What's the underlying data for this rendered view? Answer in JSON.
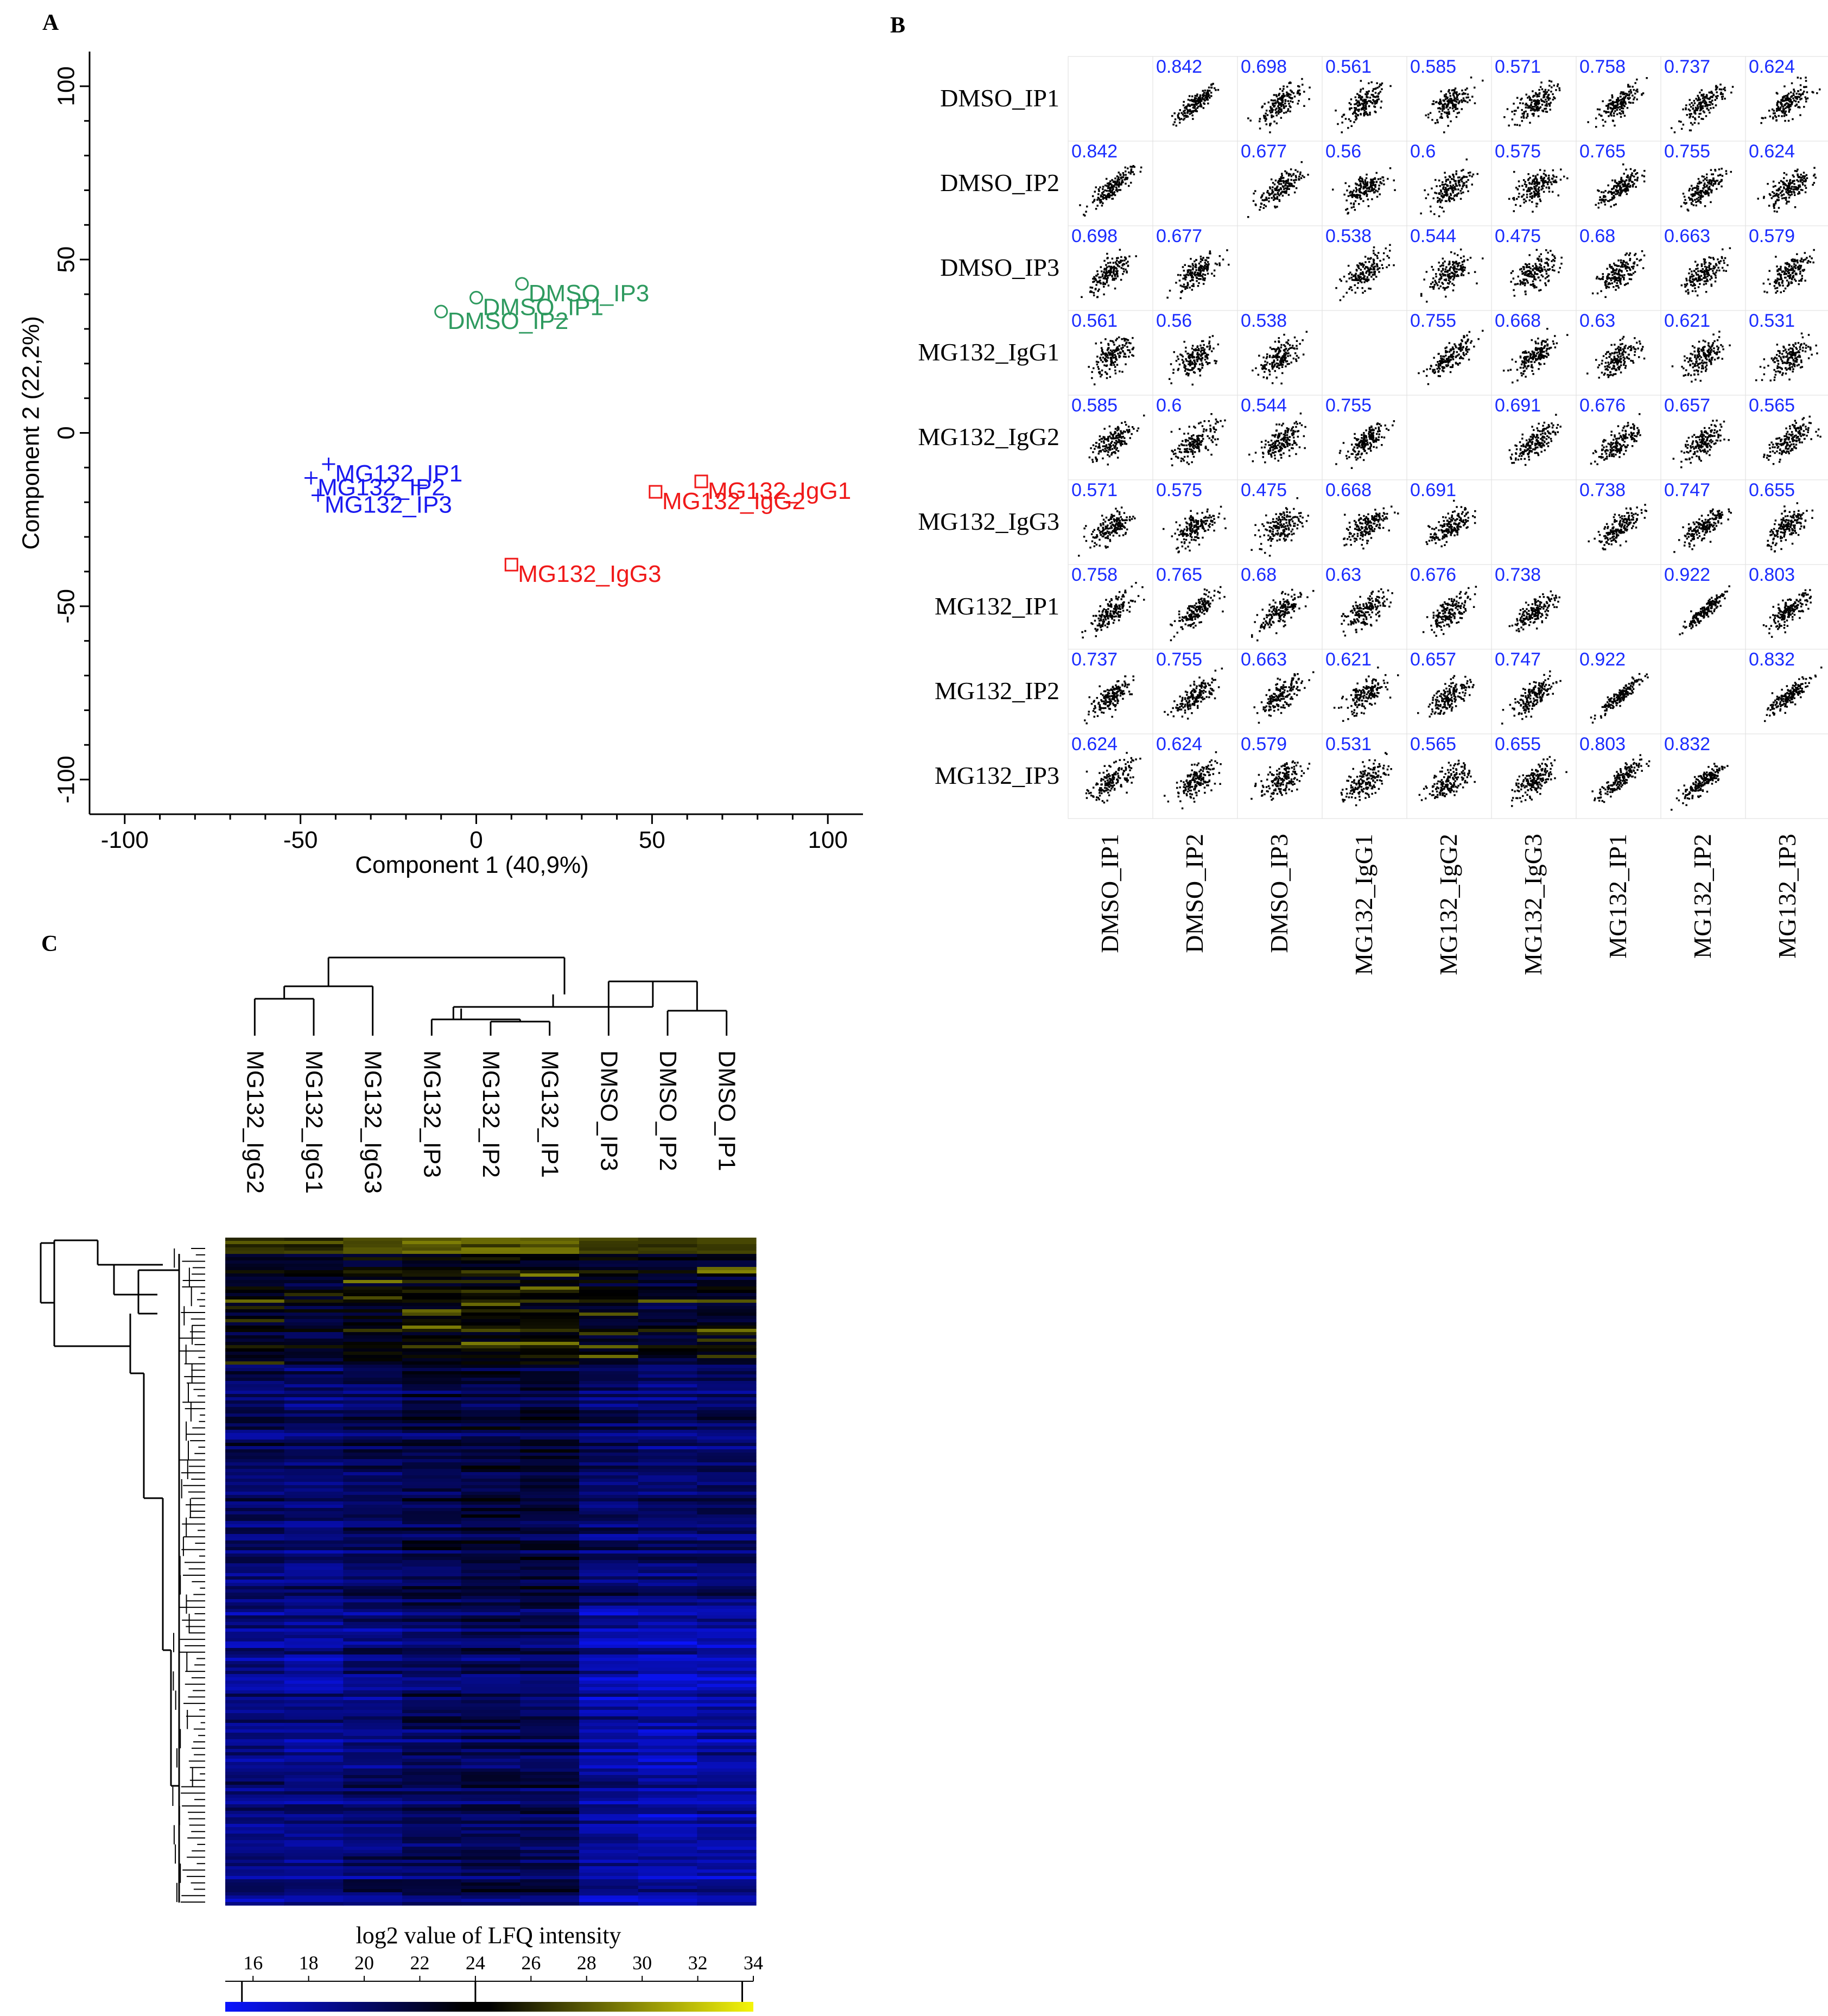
{
  "panel_labels": {
    "a": "A",
    "b": "B",
    "c": "C"
  },
  "colors": {
    "dmso": "#2e9a5f",
    "mg132_ip": "#1a1af0",
    "mg132_igg": "#f01a1a",
    "corr_text": "#1a2cff",
    "heat_low": "#0a14ff",
    "heat_mid": "#000000",
    "heat_high": "#f0f00a"
  },
  "chart_data": [
    {
      "type": "scatter",
      "panel": "A",
      "xlabel": "Component 1 (40,9%)",
      "ylabel": "Component 2 (22,2%)",
      "xlim": [
        -110,
        110
      ],
      "ylim": [
        -110,
        110
      ],
      "xticks": [
        "-100",
        "-50",
        "0",
        "50",
        "100"
      ],
      "yticks": [
        "100",
        "50",
        "0",
        "-50",
        "-100"
      ],
      "series": [
        {
          "name": "DMSO",
          "color_key": "dmso",
          "marker": "circle",
          "points": [
            {
              "label": "DMSO_IP3",
              "x": 13,
              "y": 43
            },
            {
              "label": "DMSO_IP1",
              "x": 0,
              "y": 39
            },
            {
              "label": "DMSO_IP2",
              "x": -10,
              "y": 35
            }
          ]
        },
        {
          "name": "MG132 IP",
          "color_key": "mg132_ip",
          "marker": "plus",
          "points": [
            {
              "label": "MG132_IP1",
              "x": -42,
              "y": -9
            },
            {
              "label": "MG132_IP2",
              "x": -47,
              "y": -13
            },
            {
              "label": "MG132_IP3",
              "x": -45,
              "y": -18
            }
          ]
        },
        {
          "name": "MG132 IgG",
          "color_key": "mg132_igg",
          "marker": "square",
          "points": [
            {
              "label": "MG132_IgG1",
              "x": 64,
              "y": -14
            },
            {
              "label": "MG132_IgG2",
              "x": 51,
              "y": -17
            },
            {
              "label": "MG132_IgG3",
              "x": 10,
              "y": -38
            }
          ]
        }
      ]
    },
    {
      "type": "heatmap",
      "panel": "B",
      "description": "scatter plot matrix with Pearson correlation values",
      "labels": [
        "DMSO_IP1",
        "DMSO_IP2",
        "DMSO_IP3",
        "MG132_IgG1",
        "MG132_IgG2",
        "MG132_IgG3",
        "MG132_IP1",
        "MG132_IP2",
        "MG132_IP3"
      ],
      "matrix_labels": [
        [
          "",
          "0.842",
          "0.698",
          "0.561",
          "0.585",
          "0.571",
          "0.758",
          "0.737",
          "0.624"
        ],
        [
          "0.842",
          "",
          "0.677",
          "0.56",
          "0.6",
          "0.575",
          "0.765",
          "0.755",
          "0.624"
        ],
        [
          "0.698",
          "0.677",
          "",
          "0.538",
          "0.544",
          "0.475",
          "0.68",
          "0.663",
          "0.579"
        ],
        [
          "0.561",
          "0.56",
          "0.538",
          "",
          "0.755",
          "0.668",
          "0.63",
          "0.621",
          "0.531"
        ],
        [
          "0.585",
          "0.6",
          "0.544",
          "0.755",
          "",
          "0.691",
          "0.676",
          "0.657",
          "0.565"
        ],
        [
          "0.571",
          "0.575",
          "0.475",
          "0.668",
          "0.691",
          "",
          "0.738",
          "0.747",
          "0.655"
        ],
        [
          "0.758",
          "0.765",
          "0.68",
          "0.63",
          "0.676",
          "0.738",
          "",
          "0.922",
          "0.803"
        ],
        [
          "0.737",
          "0.755",
          "0.663",
          "0.621",
          "0.657",
          "0.747",
          "0.922",
          "",
          "0.832"
        ],
        [
          "0.624",
          "0.624",
          "0.579",
          "0.531",
          "0.565",
          "0.655",
          "0.803",
          "0.832",
          ""
        ]
      ]
    },
    {
      "type": "heatmap",
      "panel": "C",
      "column_order": [
        "MG132_IgG2",
        "MG132_IgG1",
        "MG132_IgG3",
        "MG132_IP3",
        "MG132_IP2",
        "MG132_IP1",
        "DMSO_IP3",
        "DMSO_IP2",
        "DMSO_IP1"
      ],
      "colorbar_label": "log2 value of LFQ intensity",
      "colorbar_ticks": [
        "16",
        "18",
        "20",
        "22",
        "24",
        "26",
        "28",
        "30",
        "32",
        "34"
      ],
      "colorbar_range": [
        15,
        34
      ],
      "colorbar_markers": [
        15.6,
        24.0,
        33.6
      ]
    }
  ]
}
